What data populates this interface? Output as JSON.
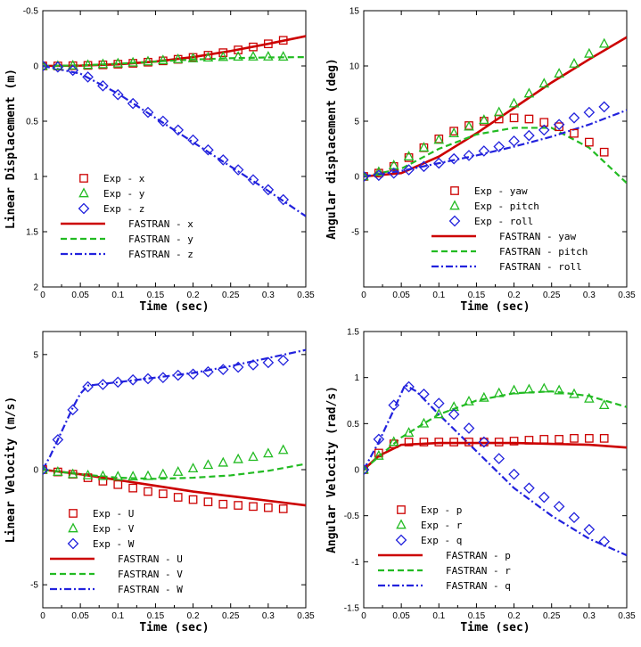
{
  "colors": {
    "red": "#cc0000",
    "green": "#22bb22",
    "blue": "#2222dd"
  },
  "chart_data": [
    {
      "type": "line",
      "xlabel": "Time (sec)",
      "ylabel": "Linear Displacement (m)",
      "xlim": [
        0,
        0.35
      ],
      "ylim": [
        -0.5,
        2
      ],
      "y_inverted": true,
      "xticks": [
        "0",
        "0.05",
        "0.1",
        "0.15",
        "0.2",
        "0.25",
        "0.3",
        "0.35"
      ],
      "yticks": [
        "-0.5",
        "0",
        "0.5",
        "1",
        "1.5",
        "2"
      ],
      "legend_position": "lower-left",
      "experiment": [
        {
          "name": "Exp - x",
          "marker": "square",
          "color": "red",
          "x": [
            0,
            0.02,
            0.04,
            0.06,
            0.08,
            0.1,
            0.12,
            0.14,
            0.16,
            0.18,
            0.2,
            0.22,
            0.24,
            0.26,
            0.28,
            0.3,
            0.32
          ],
          "y": [
            0,
            0,
            -0.002,
            -0.005,
            -0.01,
            -0.016,
            -0.024,
            -0.034,
            -0.046,
            -0.06,
            -0.077,
            -0.097,
            -0.12,
            -0.145,
            -0.172,
            -0.2,
            -0.232
          ]
        },
        {
          "name": "Exp - y",
          "marker": "triangle",
          "color": "green",
          "x": [
            0,
            0.02,
            0.04,
            0.06,
            0.08,
            0.1,
            0.12,
            0.14,
            0.16,
            0.18,
            0.2,
            0.22,
            0.24,
            0.26,
            0.28,
            0.3,
            0.32
          ],
          "y": [
            0,
            0,
            -0.003,
            -0.008,
            -0.015,
            -0.022,
            -0.03,
            -0.04,
            -0.05,
            -0.06,
            -0.068,
            -0.075,
            -0.08,
            -0.083,
            -0.084,
            -0.084,
            -0.083
          ]
        },
        {
          "name": "Exp - z",
          "marker": "diamond",
          "color": "blue",
          "x": [
            0,
            0.02,
            0.04,
            0.06,
            0.08,
            0.1,
            0.12,
            0.14,
            0.16,
            0.18,
            0.2,
            0.22,
            0.24,
            0.26,
            0.28,
            0.3,
            0.32
          ],
          "y": [
            0,
            0.01,
            0.04,
            0.1,
            0.18,
            0.26,
            0.34,
            0.42,
            0.5,
            0.58,
            0.67,
            0.76,
            0.85,
            0.94,
            1.03,
            1.12,
            1.21
          ]
        }
      ],
      "simulation": [
        {
          "name": "FASTRAN - x",
          "dash": "solid",
          "color": "red",
          "x": [
            0,
            0.05,
            0.1,
            0.15,
            0.2,
            0.25,
            0.3,
            0.35
          ],
          "y": [
            0,
            -0.003,
            -0.015,
            -0.04,
            -0.08,
            -0.135,
            -0.2,
            -0.27
          ]
        },
        {
          "name": "FASTRAN - y",
          "dash": "dashed",
          "color": "green",
          "x": [
            0,
            0.05,
            0.1,
            0.15,
            0.2,
            0.25,
            0.3,
            0.35
          ],
          "y": [
            0,
            -0.005,
            -0.02,
            -0.04,
            -0.058,
            -0.07,
            -0.077,
            -0.08
          ]
        },
        {
          "name": "FASTRAN - z",
          "dash": "dashdot",
          "color": "blue",
          "x": [
            0,
            0.05,
            0.1,
            0.15,
            0.2,
            0.25,
            0.3,
            0.35
          ],
          "y": [
            0,
            0.07,
            0.25,
            0.47,
            0.69,
            0.91,
            1.13,
            1.36
          ]
        }
      ]
    },
    {
      "type": "line",
      "xlabel": "Time (sec)",
      "ylabel": "Angular displacement (deg)",
      "xlim": [
        0,
        0.35
      ],
      "ylim": [
        -10,
        15
      ],
      "y_inverted": false,
      "xticks": [
        "0",
        "0.05",
        "0.1",
        "0.15",
        "0.2",
        "0.25",
        "0.3",
        "0.35"
      ],
      "yticks": [
        "-5",
        "0",
        "5",
        "10",
        "15"
      ],
      "legend_position": "lower-right",
      "experiment": [
        {
          "name": "Exp - yaw",
          "marker": "square",
          "color": "red",
          "x": [
            0,
            0.02,
            0.04,
            0.06,
            0.08,
            0.1,
            0.12,
            0.14,
            0.16,
            0.18,
            0.2,
            0.22,
            0.24,
            0.26,
            0.28,
            0.3,
            0.32
          ],
          "y": [
            0,
            0.3,
            0.9,
            1.7,
            2.6,
            3.4,
            4.1,
            4.6,
            5.0,
            5.2,
            5.3,
            5.2,
            4.9,
            4.5,
            3.9,
            3.1,
            2.2
          ]
        },
        {
          "name": "Exp - pitch",
          "marker": "triangle",
          "color": "green",
          "x": [
            0,
            0.02,
            0.04,
            0.06,
            0.08,
            0.1,
            0.12,
            0.14,
            0.16,
            0.18,
            0.2,
            0.22,
            0.24,
            0.26,
            0.28,
            0.3,
            0.32
          ],
          "y": [
            0,
            0.4,
            1.0,
            1.8,
            2.6,
            3.3,
            3.9,
            4.5,
            5.1,
            5.8,
            6.6,
            7.5,
            8.4,
            9.3,
            10.2,
            11.1,
            12.0
          ]
        },
        {
          "name": "Exp - roll",
          "marker": "diamond",
          "color": "blue",
          "x": [
            0,
            0.02,
            0.04,
            0.06,
            0.08,
            0.1,
            0.12,
            0.14,
            0.16,
            0.18,
            0.2,
            0.22,
            0.24,
            0.26,
            0.28,
            0.3,
            0.32
          ],
          "y": [
            0,
            0.1,
            0.3,
            0.6,
            0.9,
            1.2,
            1.6,
            1.9,
            2.3,
            2.7,
            3.2,
            3.7,
            4.2,
            4.7,
            5.3,
            5.8,
            6.3
          ]
        }
      ],
      "simulation": [
        {
          "name": "FASTRAN - yaw",
          "dash": "solid",
          "color": "red",
          "x": [
            0,
            0.05,
            0.1,
            0.15,
            0.2,
            0.25,
            0.3,
            0.35
          ],
          "y": [
            0,
            0.3,
            1.8,
            3.9,
            6.2,
            8.5,
            10.6,
            12.6
          ]
        },
        {
          "name": "FASTRAN - pitch",
          "dash": "dashed",
          "color": "green",
          "x": [
            0,
            0.05,
            0.1,
            0.15,
            0.2,
            0.25,
            0.3,
            0.35
          ],
          "y": [
            0,
            0.7,
            2.5,
            3.8,
            4.4,
            4.4,
            2.6,
            -0.6
          ]
        },
        {
          "name": "FASTRAN - roll",
          "dash": "dashdot",
          "color": "blue",
          "x": [
            0,
            0.05,
            0.1,
            0.15,
            0.2,
            0.25,
            0.3,
            0.35
          ],
          "y": [
            0,
            0.5,
            1.2,
            1.9,
            2.7,
            3.6,
            4.7,
            6.0
          ]
        }
      ]
    },
    {
      "type": "line",
      "xlabel": "Time (sec)",
      "ylabel": "Linear Velocity (m/s)",
      "xlim": [
        0,
        0.35
      ],
      "ylim": [
        -6,
        6
      ],
      "y_inverted": false,
      "xticks": [
        "0",
        "0.05",
        "0.1",
        "0.15",
        "0.2",
        "0.25",
        "0.3",
        "0.35"
      ],
      "yticks": [
        "-5",
        "0",
        "5"
      ],
      "legend_position": "lower-left",
      "experiment": [
        {
          "name": "Exp - U",
          "marker": "square",
          "color": "red",
          "x": [
            0,
            0.02,
            0.04,
            0.06,
            0.08,
            0.1,
            0.12,
            0.14,
            0.16,
            0.18,
            0.2,
            0.22,
            0.24,
            0.26,
            0.28,
            0.3,
            0.32
          ],
          "y": [
            0,
            -0.1,
            -0.2,
            -0.35,
            -0.5,
            -0.65,
            -0.8,
            -0.95,
            -1.05,
            -1.2,
            -1.3,
            -1.4,
            -1.5,
            -1.55,
            -1.6,
            -1.65,
            -1.7
          ]
        },
        {
          "name": "Exp - V",
          "marker": "triangle",
          "color": "green",
          "x": [
            0,
            0.02,
            0.04,
            0.06,
            0.08,
            0.1,
            0.12,
            0.14,
            0.16,
            0.18,
            0.2,
            0.22,
            0.24,
            0.26,
            0.28,
            0.3,
            0.32
          ],
          "y": [
            0,
            -0.1,
            -0.2,
            -0.25,
            -0.28,
            -0.3,
            -0.3,
            -0.28,
            -0.2,
            -0.1,
            0.05,
            0.2,
            0.3,
            0.45,
            0.55,
            0.7,
            0.85
          ]
        },
        {
          "name": "Exp - W",
          "marker": "diamond",
          "color": "blue",
          "x": [
            0,
            0.02,
            0.04,
            0.06,
            0.08,
            0.1,
            0.12,
            0.14,
            0.16,
            0.18,
            0.2,
            0.22,
            0.24,
            0.26,
            0.28,
            0.3,
            0.32
          ],
          "y": [
            0,
            1.3,
            2.6,
            3.6,
            3.7,
            3.8,
            3.9,
            3.95,
            4.0,
            4.1,
            4.15,
            4.25,
            4.35,
            4.45,
            4.55,
            4.65,
            4.75
          ]
        }
      ],
      "simulation": [
        {
          "name": "FASTRAN - U",
          "dash": "solid",
          "color": "red",
          "x": [
            0,
            0.05,
            0.1,
            0.15,
            0.2,
            0.25,
            0.3,
            0.35
          ],
          "y": [
            0,
            -0.2,
            -0.45,
            -0.7,
            -0.95,
            -1.15,
            -1.35,
            -1.55
          ]
        },
        {
          "name": "FASTRAN - V",
          "dash": "dashed",
          "color": "green",
          "x": [
            0,
            0.05,
            0.1,
            0.15,
            0.2,
            0.25,
            0.3,
            0.35
          ],
          "y": [
            0,
            -0.2,
            -0.35,
            -0.4,
            -0.35,
            -0.25,
            -0.05,
            0.25
          ]
        },
        {
          "name": "FASTRAN - W",
          "dash": "dashdot",
          "color": "blue",
          "x": [
            0,
            0.01,
            0.02,
            0.03,
            0.04,
            0.05,
            0.06,
            0.1,
            0.15,
            0.2,
            0.25,
            0.3,
            0.35
          ],
          "y": [
            0,
            0.6,
            1.3,
            2.0,
            2.7,
            3.3,
            3.65,
            3.8,
            4.0,
            4.2,
            4.5,
            4.85,
            5.2
          ]
        }
      ]
    },
    {
      "type": "line",
      "xlabel": "Time (sec)",
      "ylabel": "Angular Velocity (rad/s)",
      "xlim": [
        0,
        0.35
      ],
      "ylim": [
        -1.5,
        1.5
      ],
      "y_inverted": false,
      "xticks": [
        "0",
        "0.05",
        "0.1",
        "0.15",
        "0.2",
        "0.25",
        "0.3",
        "0.35"
      ],
      "yticks": [
        "-1.5",
        "-1",
        "-0.5",
        "0",
        "0.5",
        "1",
        "1.5"
      ],
      "legend_position": "lower-left",
      "experiment": [
        {
          "name": "Exp - p",
          "marker": "square",
          "color": "red",
          "x": [
            0,
            0.02,
            0.04,
            0.06,
            0.08,
            0.1,
            0.12,
            0.14,
            0.16,
            0.18,
            0.2,
            0.22,
            0.24,
            0.26,
            0.28,
            0.3,
            0.32
          ],
          "y": [
            0,
            0.18,
            0.28,
            0.3,
            0.3,
            0.3,
            0.3,
            0.3,
            0.3,
            0.3,
            0.31,
            0.32,
            0.33,
            0.33,
            0.34,
            0.34,
            0.34
          ]
        },
        {
          "name": "Exp - r",
          "marker": "triangle",
          "color": "green",
          "x": [
            0,
            0.02,
            0.04,
            0.06,
            0.08,
            0.1,
            0.12,
            0.14,
            0.16,
            0.18,
            0.2,
            0.22,
            0.24,
            0.26,
            0.28,
            0.3,
            0.32
          ],
          "y": [
            0,
            0.15,
            0.3,
            0.4,
            0.5,
            0.6,
            0.68,
            0.74,
            0.78,
            0.83,
            0.86,
            0.87,
            0.88,
            0.86,
            0.82,
            0.77,
            0.7
          ]
        },
        {
          "name": "Exp - q",
          "marker": "diamond",
          "color": "blue",
          "x": [
            0,
            0.02,
            0.04,
            0.06,
            0.08,
            0.1,
            0.12,
            0.14,
            0.16,
            0.18,
            0.2,
            0.22,
            0.24,
            0.26,
            0.28,
            0.3,
            0.32
          ],
          "y": [
            0,
            0.33,
            0.7,
            0.9,
            0.82,
            0.72,
            0.6,
            0.45,
            0.3,
            0.12,
            -0.05,
            -0.2,
            -0.3,
            -0.4,
            -0.52,
            -0.65,
            -0.78
          ]
        }
      ],
      "simulation": [
        {
          "name": "FASTRAN - p",
          "dash": "solid",
          "color": "red",
          "x": [
            0,
            0.02,
            0.05,
            0.1,
            0.15,
            0.2,
            0.25,
            0.3,
            0.35
          ],
          "y": [
            0,
            0.15,
            0.27,
            0.29,
            0.29,
            0.29,
            0.28,
            0.27,
            0.24
          ]
        },
        {
          "name": "FASTRAN - r",
          "dash": "dashed",
          "color": "green",
          "x": [
            0,
            0.05,
            0.1,
            0.15,
            0.2,
            0.25,
            0.3,
            0.35
          ],
          "y": [
            0,
            0.35,
            0.6,
            0.75,
            0.83,
            0.85,
            0.8,
            0.68
          ]
        },
        {
          "name": "FASTRAN - q",
          "dash": "dashdot",
          "color": "blue",
          "x": [
            0,
            0.02,
            0.04,
            0.055,
            0.07,
            0.1,
            0.15,
            0.2,
            0.25,
            0.3,
            0.35
          ],
          "y": [
            0,
            0.3,
            0.65,
            0.92,
            0.85,
            0.6,
            0.2,
            -0.2,
            -0.5,
            -0.75,
            -0.93
          ]
        }
      ]
    }
  ]
}
